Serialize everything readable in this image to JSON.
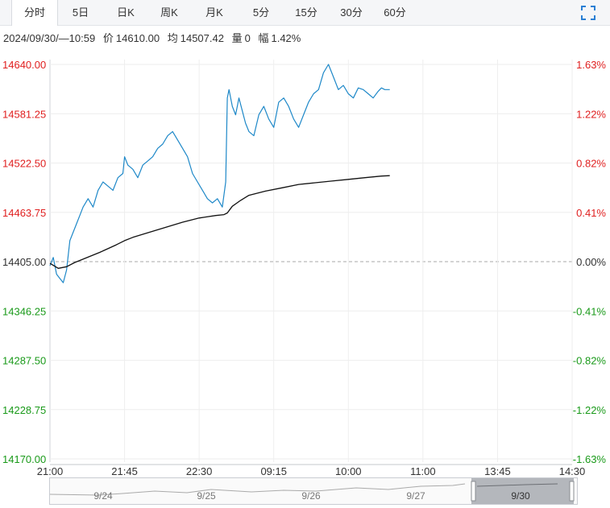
{
  "tabs": [
    "分时",
    "5日",
    "日K",
    "周K",
    "月K",
    "5分",
    "15分",
    "30分",
    "60分"
  ],
  "active_tab": 0,
  "icons": {
    "expand": "expand-icon"
  },
  "info": {
    "datetime": "2024/09/30/—10:59",
    "price_label": "价",
    "price": "14610.00",
    "avg_label": "均",
    "avg": "14507.42",
    "volume_label": "量",
    "volume": "0",
    "change_label": "幅",
    "change": "1.42%"
  },
  "colors": {
    "up": "#e02020",
    "down": "#1a9a1a",
    "price_line": "#1e88c8",
    "avg_line": "#111111",
    "zero_line": "#aaaaaa",
    "grid": "#eeeeee"
  },
  "chart_data": {
    "type": "line",
    "prev_close": 14405.0,
    "ylim": [
      14170.0,
      14640.0
    ],
    "y_ticks_left": [
      "14640.00",
      "14581.25",
      "14522.50",
      "14463.75",
      "14405.00",
      "14346.25",
      "14287.50",
      "14228.75",
      "14170.00"
    ],
    "y_ticks_right": [
      "1.63%",
      "1.22%",
      "0.82%",
      "0.41%",
      "0.00%",
      "-0.41%",
      "-0.82%",
      "-1.22%",
      "-1.63%"
    ],
    "x_ticks": [
      "21:00",
      "21:45",
      "22:30",
      "09:15",
      "10:00",
      "11:00",
      "13:45",
      "14:30"
    ],
    "x_tick_positions": [
      0,
      45,
      90,
      135,
      180,
      225,
      270,
      315
    ],
    "x_range": [
      0,
      315
    ],
    "series": [
      {
        "type": "price",
        "x": [
          0,
          2,
          4,
          6,
          8,
          10,
          12,
          14,
          16,
          18,
          20,
          23,
          26,
          29,
          32,
          35,
          38,
          41,
          44,
          45,
          47,
          50,
          53,
          56,
          59,
          62,
          65,
          68,
          71,
          74,
          77,
          80,
          83,
          86,
          89,
          92,
          95,
          98,
          101,
          104,
          106,
          107,
          108,
          110,
          112,
          114,
          116,
          118,
          120,
          123,
          126,
          129,
          132,
          135,
          138,
          141,
          144,
          147,
          150,
          153,
          156,
          159,
          162,
          165,
          168,
          171,
          174,
          177,
          180,
          183,
          186,
          189,
          192,
          195,
          198,
          200,
          202,
          205
        ],
        "y": [
          14400,
          14410,
          14390,
          14385,
          14380,
          14395,
          14430,
          14440,
          14450,
          14460,
          14470,
          14480,
          14470,
          14490,
          14500,
          14495,
          14490,
          14505,
          14510,
          14530,
          14520,
          14515,
          14505,
          14520,
          14525,
          14530,
          14540,
          14545,
          14555,
          14560,
          14550,
          14540,
          14530,
          14510,
          14500,
          14490,
          14480,
          14475,
          14480,
          14470,
          14500,
          14600,
          14610,
          14590,
          14580,
          14600,
          14585,
          14570,
          14560,
          14555,
          14580,
          14590,
          14575,
          14565,
          14595,
          14600,
          14590,
          14575,
          14565,
          14580,
          14595,
          14605,
          14610,
          14630,
          14640,
          14625,
          14610,
          14615,
          14605,
          14600,
          14612,
          14610,
          14605,
          14600,
          14608,
          14612,
          14610,
          14610
        ]
      },
      {
        "type": "average",
        "x": [
          0,
          5,
          10,
          15,
          20,
          30,
          40,
          45,
          50,
          60,
          70,
          80,
          90,
          100,
          105,
          107,
          110,
          115,
          120,
          130,
          140,
          150,
          160,
          170,
          180,
          190,
          200,
          205
        ],
        "y": [
          14403,
          14397,
          14399,
          14404,
          14408,
          14416,
          14425,
          14430,
          14434,
          14440,
          14446,
          14452,
          14457,
          14460,
          14461,
          14463,
          14471,
          14478,
          14484,
          14489,
          14493,
          14497,
          14499,
          14501,
          14503,
          14505,
          14507,
          14507.42
        ]
      }
    ]
  },
  "navigator": {
    "labels": [
      "9/24",
      "9/25",
      "9/26",
      "9/27",
      "9/30"
    ]
  }
}
